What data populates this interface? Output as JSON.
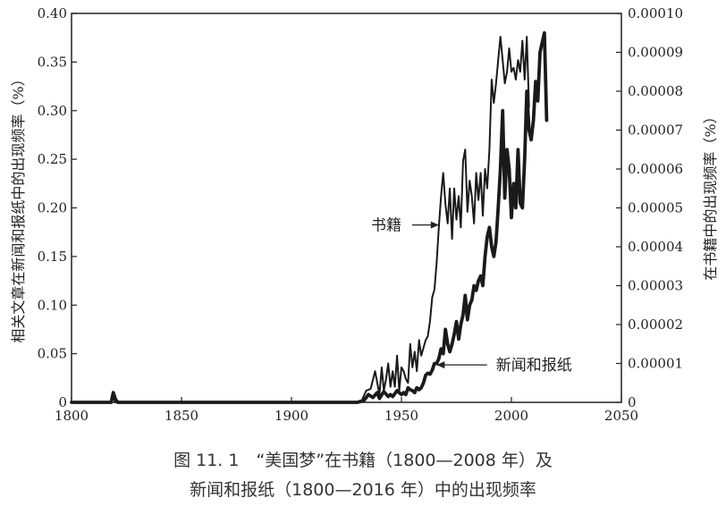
{
  "chart_data": {
    "type": "line",
    "xlim": [
      1800,
      2050
    ],
    "x_ticks": [
      1800,
      1850,
      1900,
      1950,
      2000,
      2050
    ],
    "y_left_lim": [
      0,
      0.4
    ],
    "y_left_ticks": [
      "0",
      "0.05",
      "0.10",
      "0.15",
      "0.20",
      "0.25",
      "0.30",
      "0.35",
      "0.40"
    ],
    "y_right_lim": [
      0,
      0.0001
    ],
    "y_right_ticks": [
      "0",
      "0.00001",
      "0.00002",
      "0.00003",
      "0.00004",
      "0.00005",
      "0.00006",
      "0.00007",
      "0.00008",
      "0.00009",
      "0.00010"
    ],
    "ylabel_left": "相关文章在新闻和报纸中的出现频率（%）",
    "ylabel_right": "在书籍中的出现频率（%）",
    "grid": false,
    "series": [
      {
        "name": "书籍",
        "axis": "right",
        "x": [
          1800,
          1818,
          1819,
          1820,
          1821,
          1825,
          1850,
          1900,
          1920,
          1930,
          1932,
          1934,
          1936,
          1938,
          1940,
          1941,
          1942,
          1943,
          1944,
          1945,
          1946,
          1947,
          1948,
          1949,
          1950,
          1951,
          1952,
          1953,
          1954,
          1955,
          1956,
          1957,
          1958,
          1959,
          1960,
          1961,
          1962,
          1963,
          1964,
          1965,
          1966,
          1967,
          1968,
          1969,
          1970,
          1971,
          1972,
          1973,
          1974,
          1975,
          1976,
          1977,
          1978,
          1979,
          1980,
          1981,
          1982,
          1983,
          1984,
          1985,
          1986,
          1987,
          1988,
          1989,
          1990,
          1991,
          1992,
          1993,
          1994,
          1995,
          1996,
          1997,
          1998,
          1999,
          2000,
          2001,
          2002,
          2003,
          2004,
          2005,
          2006,
          2007,
          2008
        ],
        "y": [
          0,
          0,
          1e-06,
          0,
          0,
          0,
          0,
          0,
          0,
          0,
          5e-07,
          3e-06,
          3.5e-06,
          8e-06,
          2e-06,
          9e-06,
          3e-06,
          6e-06,
          1e-05,
          4e-06,
          8e-06,
          4e-06,
          1.2e-05,
          3e-06,
          9e-06,
          8e-06,
          6e-06,
          5e-06,
          1.5e-05,
          9e-06,
          1.3e-05,
          8e-06,
          1.6e-05,
          1.2e-05,
          1.4e-05,
          1.6e-05,
          1.7e-05,
          2.1e-05,
          2.7e-05,
          2.9e-05,
          3.6e-05,
          4.5e-05,
          5.3e-05,
          5.9e-05,
          5.1e-05,
          4.6e-05,
          5.5e-05,
          4.2e-05,
          5.5e-05,
          4.7e-05,
          5.3e-05,
          4.5e-05,
          6.2e-05,
          6.5e-05,
          4.9e-05,
          5.7e-05,
          5.3e-05,
          4.6e-05,
          5.9e-05,
          5.2e-05,
          5.9e-05,
          4.8e-05,
          6e-05,
          5.5e-05,
          6.5e-05,
          8.3e-05,
          7.7e-05,
          8.2e-05,
          8.8e-05,
          9.4e-05,
          8.8e-05,
          8.2e-05,
          8.5e-05,
          9.1e-05,
          8.5e-05,
          8.6e-05,
          8.3e-05,
          8.8e-05,
          8.5e-05,
          9.3e-05,
          8.3e-05,
          9.4e-05,
          7.6e-05
        ]
      },
      {
        "name": "新闻和报纸",
        "axis": "left",
        "x": [
          1800,
          1818,
          1819,
          1820,
          1821,
          1825,
          1850,
          1900,
          1920,
          1930,
          1933,
          1935,
          1937,
          1939,
          1940,
          1942,
          1944,
          1945,
          1946,
          1948,
          1950,
          1951,
          1952,
          1953,
          1954,
          1955,
          1956,
          1957,
          1958,
          1959,
          1960,
          1961,
          1962,
          1963,
          1964,
          1965,
          1966,
          1967,
          1968,
          1969,
          1970,
          1971,
          1972,
          1973,
          1974,
          1975,
          1976,
          1977,
          1978,
          1979,
          1980,
          1981,
          1982,
          1983,
          1984,
          1985,
          1986,
          1987,
          1988,
          1989,
          1990,
          1991,
          1992,
          1993,
          1994,
          1995,
          1996,
          1997,
          1998,
          1999,
          2000,
          2001,
          2002,
          2003,
          2004,
          2005,
          2006,
          2007,
          2008,
          2009,
          2010,
          2011,
          2012,
          2013,
          2014,
          2015,
          2016
        ],
        "y": [
          0,
          0,
          0.01,
          0.003,
          0,
          0,
          0,
          0,
          0,
          0,
          0.002,
          0.008,
          0.005,
          0.01,
          0.004,
          0.011,
          0.006,
          0.008,
          0.006,
          0.012,
          0.008,
          0.01,
          0.008,
          0.015,
          0.013,
          0.012,
          0.01,
          0.015,
          0.013,
          0.015,
          0.02,
          0.028,
          0.03,
          0.029,
          0.033,
          0.04,
          0.04,
          0.045,
          0.055,
          0.05,
          0.075,
          0.06,
          0.052,
          0.06,
          0.07,
          0.083,
          0.065,
          0.08,
          0.09,
          0.11,
          0.085,
          0.1,
          0.105,
          0.12,
          0.115,
          0.125,
          0.13,
          0.12,
          0.15,
          0.17,
          0.18,
          0.16,
          0.15,
          0.165,
          0.2,
          0.24,
          0.3,
          0.21,
          0.26,
          0.24,
          0.19,
          0.225,
          0.2,
          0.26,
          0.205,
          0.2,
          0.25,
          0.32,
          0.28,
          0.27,
          0.29,
          0.33,
          0.31,
          0.36,
          0.37,
          0.38,
          0.29
        ]
      }
    ],
    "annotations": [
      {
        "text": "书籍",
        "x": 1950,
        "y": 4.56e-05,
        "arrow_to": [
          1967,
          4.56e-05
        ]
      },
      {
        "text": "新闻和报纸",
        "x": 1993,
        "y": 0.0385,
        "arrow_to": [
          1966,
          0.0385
        ]
      }
    ]
  },
  "caption": {
    "line1": "图 11. 1　“美国梦”在书籍（1800—2008 年）及",
    "line2": "新闻和报纸（1800—2016 年）中的出现频率"
  }
}
